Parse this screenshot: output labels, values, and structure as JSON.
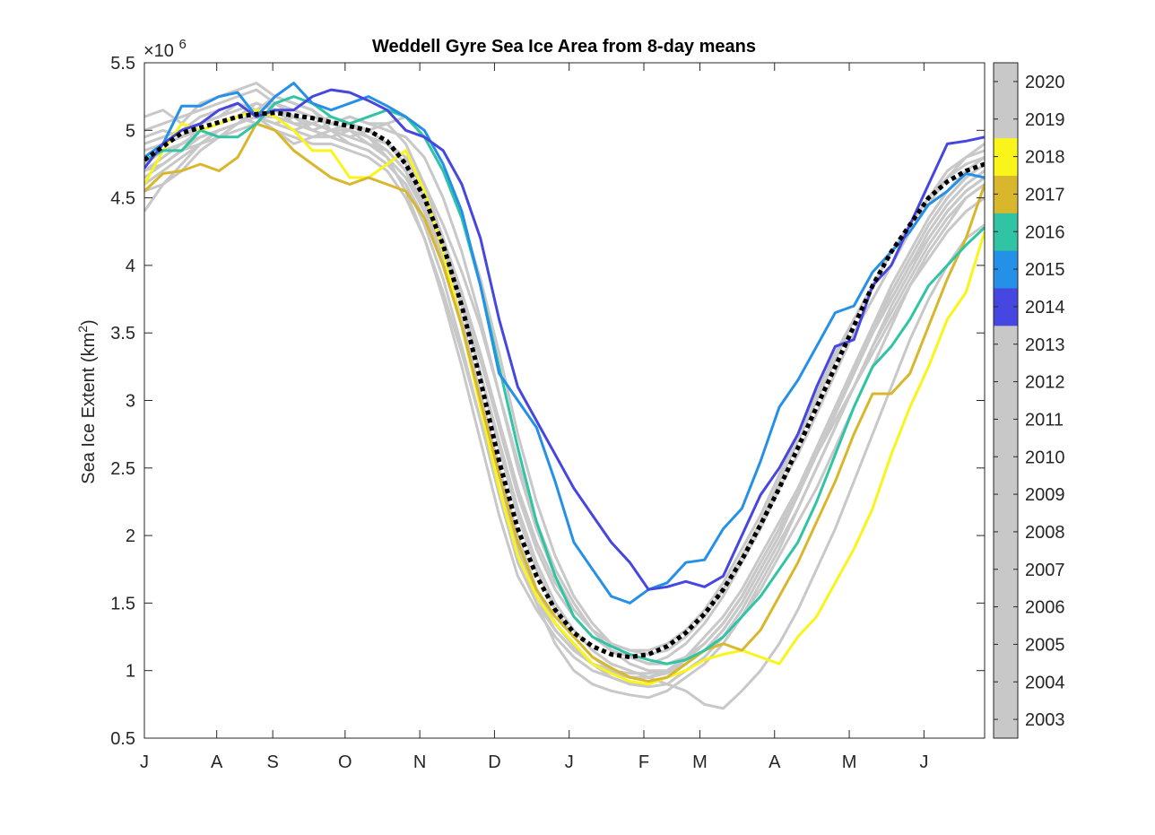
{
  "chart_data": {
    "type": "line",
    "title": "Weddell Gyre Sea Ice Area from 8-day means",
    "ylabel_prefix": "Sea Ice Extent (km",
    "ylabel_sup": "2",
    "ylabel_suffix": ")",
    "y_exponent_base": "×10",
    "y_exponent_power": "6",
    "y_scale_factor": 1000000,
    "ylim": [
      0.5,
      5.5
    ],
    "xlim": [
      0,
      360
    ],
    "grid": false,
    "y_ticks": [
      {
        "v": 0.5,
        "label": "0.5"
      },
      {
        "v": 1,
        "label": "1"
      },
      {
        "v": 1.5,
        "label": "1.5"
      },
      {
        "v": 2,
        "label": "2"
      },
      {
        "v": 2.5,
        "label": "2.5"
      },
      {
        "v": 3,
        "label": "3"
      },
      {
        "v": 3.5,
        "label": "3.5"
      },
      {
        "v": 4,
        "label": "4"
      },
      {
        "v": 4.5,
        "label": "4.5"
      },
      {
        "v": 5,
        "label": "5"
      },
      {
        "v": 5.5,
        "label": "5.5"
      }
    ],
    "x_ticks": [
      {
        "v": 0,
        "label": "J"
      },
      {
        "v": 31,
        "label": "A"
      },
      {
        "v": 55,
        "label": "S"
      },
      {
        "v": 86,
        "label": "O"
      },
      {
        "v": 118,
        "label": "N"
      },
      {
        "v": 150,
        "label": "D"
      },
      {
        "v": 182,
        "label": "J"
      },
      {
        "v": 214,
        "label": "F"
      },
      {
        "v": 238,
        "label": "M"
      },
      {
        "v": 270,
        "label": "A"
      },
      {
        "v": 302,
        "label": "M"
      },
      {
        "v": 334,
        "label": "J"
      }
    ],
    "colorbar": {
      "years": [
        "2003",
        "2004",
        "2005",
        "2006",
        "2007",
        "2008",
        "2009",
        "2010",
        "2011",
        "2012",
        "2013",
        "2014",
        "2015",
        "2016",
        "2017",
        "2018",
        "2019",
        "2020"
      ],
      "colors": [
        "#c8c8c8",
        "#c8c8c8",
        "#c8c8c8",
        "#c8c8c8",
        "#c8c8c8",
        "#c8c8c8",
        "#c8c8c8",
        "#c8c8c8",
        "#c8c8c8",
        "#c8c8c8",
        "#c8c8c8",
        "#4646e0",
        "#2590e8",
        "#30c4a4",
        "#d9b72c",
        "#f9f51a",
        "#c8c8c8",
        "#c8c8c8"
      ]
    },
    "x": [
      0,
      8,
      16,
      24,
      32,
      40,
      48,
      56,
      64,
      72,
      80,
      88,
      96,
      104,
      112,
      120,
      128,
      136,
      144,
      152,
      160,
      168,
      176,
      184,
      192,
      200,
      208,
      216,
      224,
      232,
      240,
      248,
      256,
      264,
      272,
      280,
      288,
      296,
      304,
      312,
      320,
      328,
      336,
      344,
      352,
      360
    ],
    "series": [
      {
        "color": "#c8c8c8",
        "values": [
          4.55,
          4.6,
          4.7,
          4.85,
          4.95,
          5.05,
          5.15,
          5.2,
          5.1,
          5.05,
          5.1,
          5.05,
          4.95,
          4.8,
          4.55,
          4.2,
          3.75,
          3.25,
          2.7,
          2.15,
          1.7,
          1.45,
          1.25,
          1.1,
          1.0,
          0.95,
          0.9,
          0.9,
          0.95,
          1.05,
          1.15,
          1.25,
          1.4,
          1.6,
          1.85,
          2.1,
          2.35,
          2.65,
          2.95,
          3.25,
          3.55,
          3.85,
          4.1,
          4.3,
          4.5,
          4.6
        ]
      },
      {
        "color": "#c8c8c8",
        "values": [
          4.95,
          5.0,
          4.95,
          5.05,
          5.1,
          5.2,
          5.15,
          5.25,
          5.2,
          5.15,
          5.05,
          5.1,
          5.05,
          5.05,
          4.9,
          4.6,
          4.2,
          3.75,
          3.2,
          2.65,
          2.15,
          1.75,
          1.45,
          1.25,
          1.1,
          1.0,
          0.95,
          0.95,
          1.0,
          1.1,
          1.2,
          1.35,
          1.55,
          1.8,
          2.05,
          2.35,
          2.65,
          2.95,
          3.25,
          3.55,
          3.8,
          4.05,
          4.3,
          4.5,
          4.65,
          4.75
        ]
      },
      {
        "color": "#c8c8c8",
        "values": [
          5.1,
          5.15,
          5.05,
          5.2,
          5.25,
          5.3,
          5.35,
          5.25,
          5.2,
          5.15,
          5.0,
          4.95,
          5.0,
          5.05,
          5.1,
          4.95,
          4.7,
          4.35,
          3.9,
          3.35,
          2.75,
          2.25,
          1.85,
          1.55,
          1.35,
          1.2,
          1.1,
          1.05,
          1.1,
          1.2,
          1.35,
          1.55,
          1.8,
          2.05,
          2.35,
          2.6,
          2.9,
          3.2,
          3.5,
          3.75,
          4.0,
          4.25,
          4.45,
          4.65,
          4.8,
          4.85
        ]
      },
      {
        "color": "#c8c8c8",
        "values": [
          4.4,
          4.6,
          4.75,
          4.9,
          5.0,
          5.05,
          5.1,
          5.0,
          4.9,
          4.95,
          5.0,
          4.9,
          4.85,
          4.75,
          4.6,
          4.3,
          3.9,
          3.4,
          2.85,
          2.3,
          1.8,
          1.5,
          1.3,
          1.15,
          1.05,
          1.0,
          0.95,
          0.95,
          1.0,
          1.1,
          1.25,
          1.4,
          1.6,
          1.85,
          2.1,
          2.35,
          2.6,
          2.85,
          3.1,
          3.35,
          3.6,
          3.85,
          4.05,
          4.25,
          4.4,
          4.5
        ]
      },
      {
        "color": "#c8c8c8",
        "values": [
          4.85,
          4.9,
          4.95,
          5.0,
          5.05,
          5.1,
          5.05,
          5.15,
          5.1,
          5.05,
          5.0,
          5.05,
          4.95,
          4.85,
          4.7,
          4.4,
          4.0,
          3.55,
          3.0,
          2.45,
          1.95,
          1.6,
          1.35,
          1.2,
          1.05,
          0.95,
          0.9,
          0.88,
          0.9,
          1.0,
          1.1,
          1.25,
          1.45,
          1.7,
          1.95,
          2.2,
          2.5,
          2.8,
          3.1,
          3.4,
          3.7,
          3.95,
          4.2,
          4.4,
          4.55,
          4.65
        ]
      },
      {
        "color": "#c8c8c8",
        "values": [
          4.7,
          4.8,
          4.9,
          5.0,
          5.05,
          5.1,
          5.2,
          5.15,
          5.05,
          5.0,
          5.05,
          5.0,
          4.95,
          4.9,
          4.8,
          4.6,
          4.3,
          3.95,
          3.55,
          3.05,
          2.55,
          2.1,
          1.75,
          1.5,
          1.3,
          1.15,
          1.05,
          1.0,
          1.0,
          1.05,
          1.15,
          1.3,
          1.5,
          1.75,
          2.0,
          2.3,
          2.6,
          2.9,
          3.2,
          3.5,
          3.75,
          4.0,
          4.25,
          4.45,
          4.6,
          4.7
        ]
      },
      {
        "color": "#c8c8c8",
        "values": [
          4.9,
          4.95,
          5.0,
          5.1,
          5.15,
          5.2,
          5.1,
          5.05,
          5.1,
          5.0,
          4.95,
          5.0,
          4.9,
          4.8,
          4.65,
          4.4,
          4.05,
          3.6,
          3.05,
          2.45,
          1.9,
          1.5,
          1.2,
          1.0,
          0.9,
          0.85,
          0.82,
          0.8,
          0.85,
          0.95,
          1.05,
          1.2,
          1.4,
          1.65,
          1.9,
          2.2,
          2.5,
          2.8,
          3.1,
          3.4,
          3.65,
          3.9,
          4.15,
          4.35,
          4.5,
          4.6
        ]
      },
      {
        "color": "#c8c8c8",
        "values": [
          4.75,
          4.85,
          4.9,
          4.95,
          5.0,
          5.05,
          5.1,
          5.1,
          5.05,
          5.05,
          5.0,
          5.0,
          4.95,
          4.9,
          4.75,
          4.5,
          4.15,
          3.75,
          3.3,
          2.8,
          2.3,
          1.9,
          1.6,
          1.4,
          1.25,
          1.15,
          1.1,
          1.05,
          1.05,
          1.1,
          1.2,
          1.35,
          1.55,
          1.8,
          2.05,
          2.35,
          2.65,
          2.95,
          3.25,
          3.55,
          3.85,
          4.1,
          4.35,
          4.55,
          4.7,
          4.8
        ]
      },
      {
        "color": "#c8c8c8",
        "values": [
          4.6,
          4.7,
          4.8,
          4.9,
          5.0,
          5.05,
          5.15,
          5.1,
          5.0,
          5.05,
          5.0,
          4.95,
          4.9,
          4.85,
          4.7,
          4.45,
          4.1,
          3.7,
          3.2,
          2.7,
          2.2,
          1.8,
          1.5,
          1.3,
          1.15,
          1.05,
          1.0,
          0.95,
          0.9,
          0.85,
          0.75,
          0.72,
          0.85,
          1.0,
          1.2,
          1.45,
          1.75,
          2.05,
          2.4,
          2.75,
          3.1,
          3.45,
          3.75,
          4.0,
          4.2,
          4.3
        ]
      },
      {
        "color": "#c8c8c8",
        "values": [
          5.0,
          5.05,
          5.1,
          5.15,
          5.2,
          5.25,
          5.3,
          5.2,
          5.15,
          5.1,
          5.05,
          5.1,
          5.05,
          5.0,
          4.95,
          4.8,
          4.5,
          4.1,
          3.6,
          3.05,
          2.5,
          2.05,
          1.7,
          1.45,
          1.3,
          1.2,
          1.15,
          1.15,
          1.2,
          1.3,
          1.45,
          1.65,
          1.9,
          2.15,
          2.45,
          2.75,
          3.05,
          3.35,
          3.6,
          3.85,
          4.1,
          4.3,
          4.5,
          4.7,
          4.8,
          4.9
        ]
      },
      {
        "color": "#c8c8c8",
        "values": [
          4.65,
          4.75,
          4.85,
          4.9,
          4.95,
          5.0,
          5.05,
          5.0,
          4.95,
          4.9,
          4.9,
          4.85,
          4.8,
          4.7,
          4.5,
          4.2,
          3.8,
          3.35,
          2.85,
          2.35,
          1.9,
          1.55,
          1.3,
          1.15,
          1.05,
          1.0,
          0.98,
          0.98,
          1.0,
          1.08,
          1.2,
          1.35,
          1.55,
          1.8,
          2.05,
          2.3,
          2.6,
          2.9,
          3.2,
          3.5,
          3.8,
          4.05,
          4.3,
          4.5,
          4.65,
          4.75
        ]
      },
      {
        "color": "#c8c8c8",
        "values": [
          4.8,
          4.9,
          5.0,
          5.05,
          5.1,
          5.15,
          5.2,
          5.15,
          5.1,
          5.05,
          5.0,
          5.05,
          5.0,
          4.9,
          4.8,
          4.55,
          4.2,
          3.8,
          3.35,
          2.85,
          2.35,
          1.95,
          1.65,
          1.45,
          1.3,
          1.2,
          1.15,
          1.12,
          1.15,
          1.25,
          1.4,
          1.6,
          1.85,
          2.1,
          2.4,
          2.7,
          3.0,
          3.3,
          3.6,
          3.85,
          4.1,
          4.3,
          4.5,
          4.65,
          4.75,
          4.8
        ]
      },
      {
        "color": "#c8c8c8",
        "values": [
          4.7,
          4.75,
          4.85,
          4.95,
          5.0,
          5.05,
          5.1,
          5.05,
          5.0,
          4.95,
          4.95,
          4.9,
          4.85,
          4.75,
          4.6,
          4.35,
          4.0,
          3.55,
          3.05,
          2.5,
          2.0,
          1.6,
          1.35,
          1.18,
          1.05,
          0.98,
          0.95,
          0.95,
          0.98,
          1.05,
          1.15,
          1.3,
          1.5,
          1.75,
          2.0,
          2.3,
          2.6,
          2.9,
          3.2,
          3.5,
          3.75,
          4.0,
          4.2,
          4.4,
          4.55,
          4.65
        ]
      },
      {
        "color": "#f9f51a",
        "values": [
          4.6,
          4.85,
          5.05,
          5.0,
          5.05,
          5.1,
          5.15,
          5.1,
          5.0,
          4.85,
          4.85,
          4.65,
          4.65,
          4.75,
          4.85,
          4.55,
          4.1,
          3.55,
          2.95,
          2.35,
          1.85,
          1.55,
          1.35,
          1.2,
          1.05,
          0.98,
          0.92,
          0.9,
          0.95,
          1.0,
          1.08,
          1.12,
          1.15,
          1.1,
          1.05,
          1.25,
          1.4,
          1.65,
          1.9,
          2.2,
          2.6,
          2.95,
          3.25,
          3.6,
          3.8,
          4.25
        ]
      },
      {
        "color": "#d9b72c",
        "values": [
          4.55,
          4.68,
          4.7,
          4.75,
          4.7,
          4.8,
          5.05,
          5.0,
          4.85,
          4.75,
          4.65,
          4.6,
          4.65,
          4.6,
          4.55,
          4.35,
          4.0,
          3.55,
          3.0,
          2.45,
          1.95,
          1.6,
          1.4,
          1.25,
          1.1,
          1.02,
          0.95,
          0.92,
          0.95,
          1.05,
          1.15,
          1.2,
          1.15,
          1.3,
          1.55,
          1.8,
          2.1,
          2.4,
          2.75,
          3.05,
          3.05,
          3.2,
          3.55,
          3.9,
          4.2,
          4.6
        ]
      },
      {
        "color": "#30c4a4",
        "values": [
          4.78,
          4.85,
          4.85,
          5.0,
          4.95,
          4.95,
          5.05,
          5.2,
          5.25,
          5.2,
          5.1,
          5.05,
          5.1,
          5.15,
          5.1,
          4.95,
          4.7,
          4.35,
          3.85,
          3.25,
          2.65,
          2.1,
          1.7,
          1.4,
          1.25,
          1.18,
          1.12,
          1.08,
          1.05,
          1.08,
          1.15,
          1.25,
          1.4,
          1.55,
          1.75,
          1.95,
          2.25,
          2.6,
          2.95,
          3.25,
          3.4,
          3.6,
          3.85,
          4.0,
          4.15,
          4.28
        ]
      },
      {
        "color": "#2590e8",
        "values": [
          4.8,
          4.9,
          5.18,
          5.18,
          5.25,
          5.28,
          5.1,
          5.25,
          5.35,
          5.2,
          5.15,
          5.2,
          5.25,
          5.18,
          5.1,
          5.0,
          4.75,
          4.4,
          3.85,
          3.2,
          3.0,
          2.8,
          2.4,
          1.95,
          1.75,
          1.55,
          1.5,
          1.6,
          1.65,
          1.8,
          1.82,
          2.05,
          2.2,
          2.55,
          2.95,
          3.15,
          3.4,
          3.65,
          3.7,
          3.95,
          4.1,
          4.25,
          4.45,
          4.55,
          4.68,
          4.65
        ]
      },
      {
        "color": "#4646e0",
        "values": [
          4.72,
          4.9,
          5.0,
          5.05,
          5.15,
          5.2,
          5.1,
          5.15,
          5.15,
          5.25,
          5.3,
          5.28,
          5.22,
          5.15,
          5.0,
          4.95,
          4.85,
          4.6,
          4.2,
          3.6,
          3.1,
          2.85,
          2.6,
          2.35,
          2.15,
          1.95,
          1.8,
          1.6,
          1.62,
          1.66,
          1.62,
          1.7,
          2.0,
          2.3,
          2.5,
          2.75,
          3.1,
          3.4,
          3.45,
          3.85,
          4.0,
          4.3,
          4.6,
          4.9,
          4.92,
          4.95
        ]
      },
      {
        "color": "#000000",
        "dashed": true,
        "values": [
          4.78,
          4.88,
          4.98,
          5.02,
          5.06,
          5.1,
          5.12,
          5.13,
          5.11,
          5.09,
          5.06,
          5.03,
          5.0,
          4.92,
          4.75,
          4.5,
          4.15,
          3.7,
          3.15,
          2.55,
          2.05,
          1.7,
          1.45,
          1.28,
          1.18,
          1.12,
          1.1,
          1.12,
          1.18,
          1.28,
          1.42,
          1.6,
          1.82,
          2.08,
          2.35,
          2.65,
          2.95,
          3.25,
          3.55,
          3.85,
          4.1,
          4.3,
          4.5,
          4.62,
          4.7,
          4.75
        ]
      }
    ]
  }
}
